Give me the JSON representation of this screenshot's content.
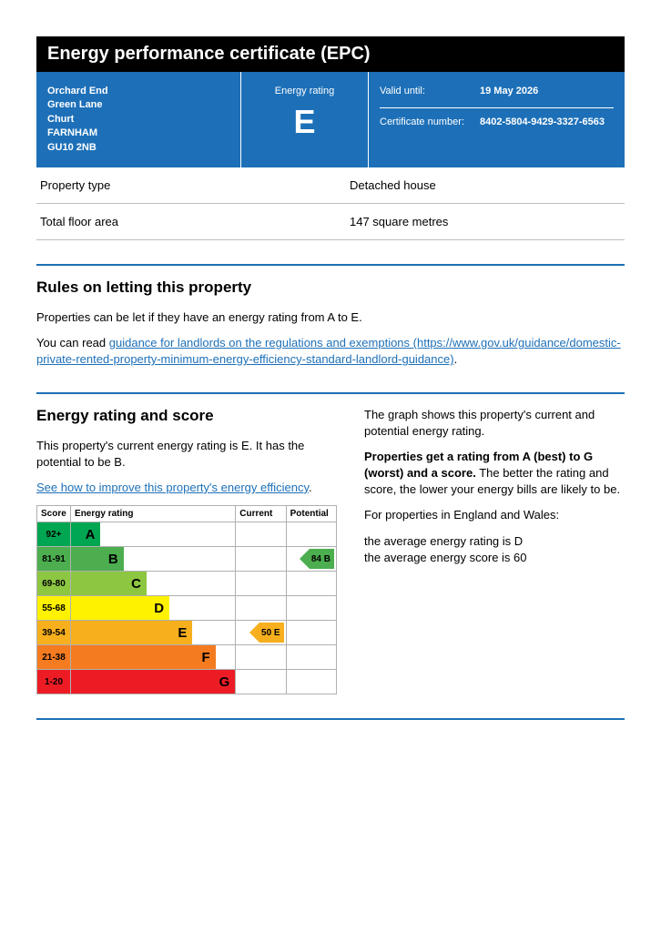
{
  "title": "Energy performance certificate (EPC)",
  "address": {
    "line1": "Orchard End",
    "line2": "Green Lane",
    "line3": "Churt",
    "town": "FARNHAM",
    "postcode": "GU10 2NB"
  },
  "rating_box": {
    "label": "Energy rating",
    "letter": "E"
  },
  "valid": {
    "label": "Valid until:",
    "value": "19 May 2026"
  },
  "cert": {
    "label": "Certificate number:",
    "value": "8402-5804-9429-3327-6563"
  },
  "rows": {
    "ptype": {
      "k": "Property type",
      "v": "Detached house"
    },
    "tfa": {
      "k": "Total floor area",
      "v": "147 square metres"
    }
  },
  "rules": {
    "heading": "Rules on letting this property",
    "p1": "Properties can be let if they have an energy rating from A to E.",
    "p2a": "You can read ",
    "link_text": "guidance for landlords on the regulations and exemptions (https://www.gov.uk/guidance/domestic-private-rented-property-minimum-energy-efficiency-standard-landlord-guidance)",
    "p2b": "."
  },
  "energy": {
    "heading": "Energy rating and score",
    "left_p1": "This property's current energy rating is E. It has the potential to be B.",
    "left_link": "See how to improve this property's energy efficiency",
    "left_link_suffix": ".",
    "right_p1": "The graph shows this property's current and potential energy rating.",
    "right_p2a": "Properties get a rating from A (best) to G (worst) and a score.",
    "right_p2b": " The better the rating and score, the lower your energy bills are likely to be.",
    "right_p3": "For properties in England and Wales:",
    "right_p4a": "the average energy rating is D",
    "right_p4b": "the average energy score is 60"
  },
  "chart": {
    "headers": {
      "score": "Score",
      "rating": "Energy rating",
      "current": "Current",
      "potential": "Potential"
    },
    "bands": [
      {
        "score_label": "92+",
        "letter": "A",
        "score_bg": "#00a651",
        "bar_bg": "#00a651",
        "bar_width_pct": 18
      },
      {
        "score_label": "81-91",
        "letter": "B",
        "score_bg": "#4cae4f",
        "bar_bg": "#4cae4f",
        "bar_width_pct": 32
      },
      {
        "score_label": "69-80",
        "letter": "C",
        "score_bg": "#8dc641",
        "bar_bg": "#8dc641",
        "bar_width_pct": 46
      },
      {
        "score_label": "55-68",
        "letter": "D",
        "score_bg": "#fff200",
        "bar_bg": "#fff200",
        "bar_width_pct": 60
      },
      {
        "score_label": "39-54",
        "letter": "E",
        "score_bg": "#f7af1d",
        "bar_bg": "#f7af1d",
        "bar_width_pct": 74
      },
      {
        "score_label": "21-38",
        "letter": "F",
        "score_bg": "#f47b20",
        "bar_bg": "#f47b20",
        "bar_width_pct": 88
      },
      {
        "score_label": "1-20",
        "letter": "G",
        "score_bg": "#ed1c24",
        "bar_bg": "#ed1c24",
        "bar_width_pct": 100
      }
    ],
    "current": {
      "band_index": 4,
      "text": "50  E",
      "color": "#f7af1d"
    },
    "potential": {
      "band_index": 1,
      "text": "84  B",
      "color": "#4cae4f"
    }
  }
}
